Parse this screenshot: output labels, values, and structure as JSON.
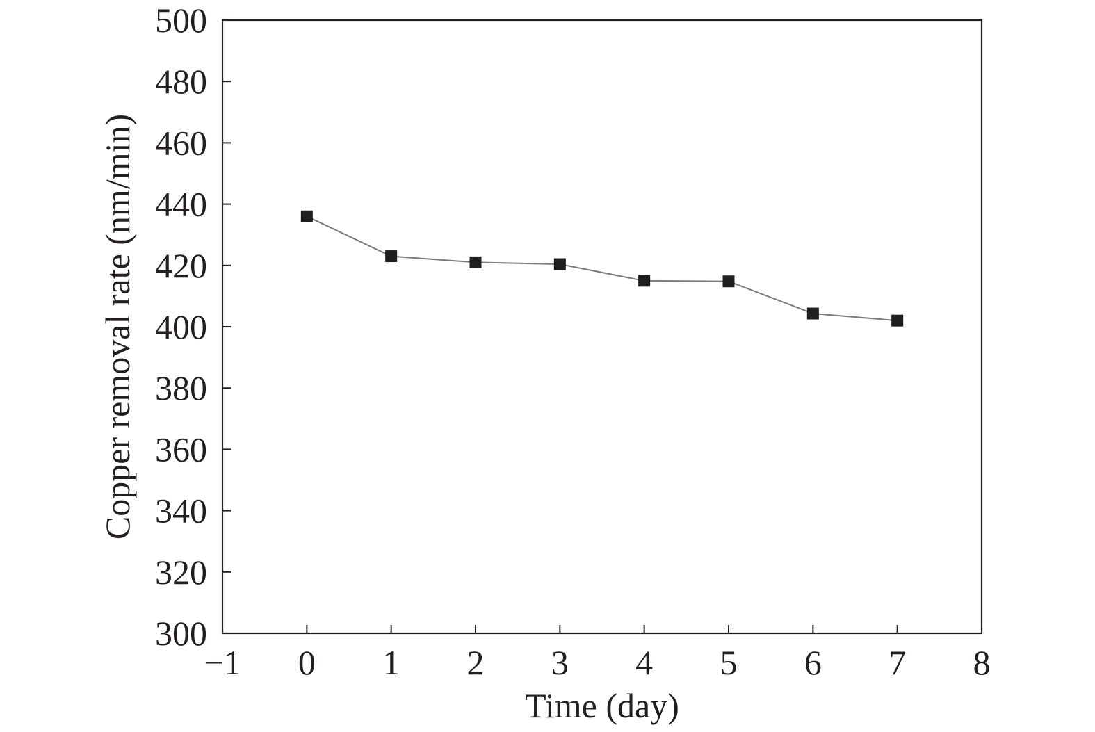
{
  "chart_data": {
    "type": "line",
    "title": "",
    "xlabel": "Time (day)",
    "ylabel": "Copper removal rate (nm/min)",
    "xlim": [
      -1,
      8
    ],
    "ylim": [
      300,
      500
    ],
    "xticks": [
      -1,
      0,
      1,
      2,
      3,
      4,
      5,
      6,
      7,
      8
    ],
    "yticks": [
      300,
      320,
      340,
      360,
      380,
      400,
      420,
      440,
      460,
      480,
      500
    ],
    "xtick_labels": [
      "−1",
      "0",
      "1",
      "2",
      "3",
      "4",
      "5",
      "6",
      "7",
      "8"
    ],
    "ytick_labels": [
      "300",
      "320",
      "340",
      "360",
      "380",
      "400",
      "420",
      "440",
      "460",
      "480",
      "500"
    ],
    "grid": false,
    "legend": "none",
    "marker": "square",
    "series": [
      {
        "x": [
          0,
          1,
          2,
          3,
          4,
          5,
          6,
          7
        ],
        "y": [
          436,
          423,
          421,
          420.4,
          415,
          414.8,
          404.3,
          402
        ]
      }
    ],
    "colors": {
      "axis": "#231f20",
      "line": "#7a7a7a",
      "marker": "#1e1e1e"
    }
  }
}
